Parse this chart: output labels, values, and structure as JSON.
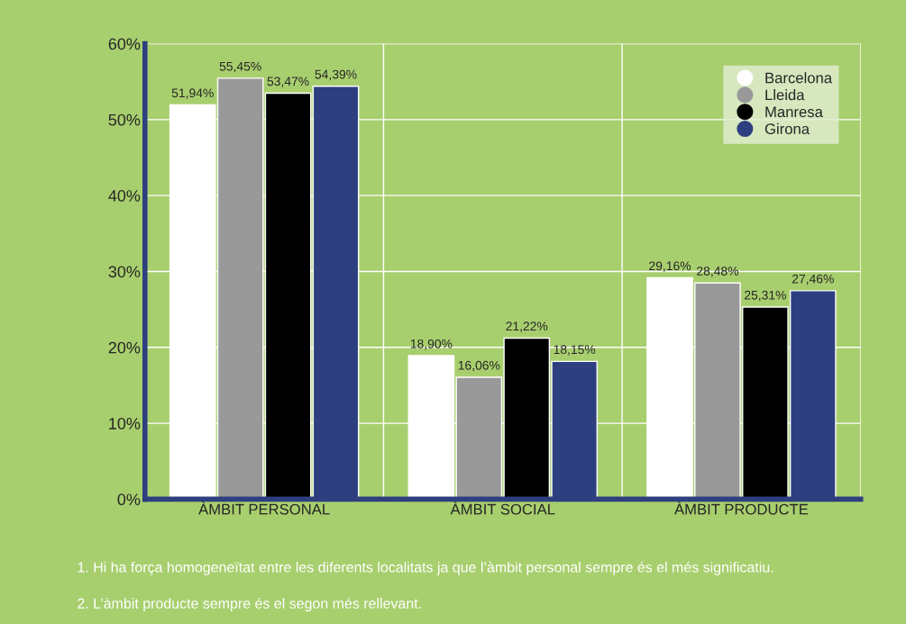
{
  "chart_data": {
    "type": "bar",
    "categories": [
      "ÀMBIT PERSONAL",
      "ÀMBIT SOCIAL",
      "ÀMBIT PRODUCTE"
    ],
    "series": [
      {
        "name": "Barcelona",
        "color": "#ffffff",
        "values": [
          51.94,
          18.9,
          29.16
        ],
        "value_labels": [
          "51,94%",
          "18,90%",
          "29,16%"
        ]
      },
      {
        "name": "Lleida",
        "color": "#999999",
        "values": [
          55.45,
          16.06,
          28.48
        ],
        "value_labels": [
          "55,45%",
          "16,06%",
          "28,48%"
        ]
      },
      {
        "name": "Manresa",
        "color": "#000000",
        "values": [
          53.47,
          21.22,
          25.31
        ],
        "value_labels": [
          "53,47%",
          "21,22%",
          "25,31%"
        ]
      },
      {
        "name": "Girona",
        "color": "#2e3f7f",
        "values": [
          54.39,
          18.15,
          27.46
        ],
        "value_labels": [
          "54,39%",
          "18,15%",
          "27,46%"
        ]
      }
    ],
    "ylim": [
      0,
      60
    ],
    "yticks": [
      {
        "value": 0,
        "label": "0%"
      },
      {
        "value": 10,
        "label": "10%"
      },
      {
        "value": 20,
        "label": "20%"
      },
      {
        "value": 30,
        "label": "30%"
      },
      {
        "value": 40,
        "label": "40%"
      },
      {
        "value": 50,
        "label": "50%"
      },
      {
        "value": 60,
        "label": "60%"
      }
    ],
    "grid": true,
    "legend": "top right",
    "marker": "circle",
    "annotations": [
      "1. Hi ha força homogeneïtat entre les diferents localitats ja que l’àmbit personal sempre és el més significatiu.",
      "2. L’àmbit producte sempre és el segon més rellevant."
    ]
  }
}
